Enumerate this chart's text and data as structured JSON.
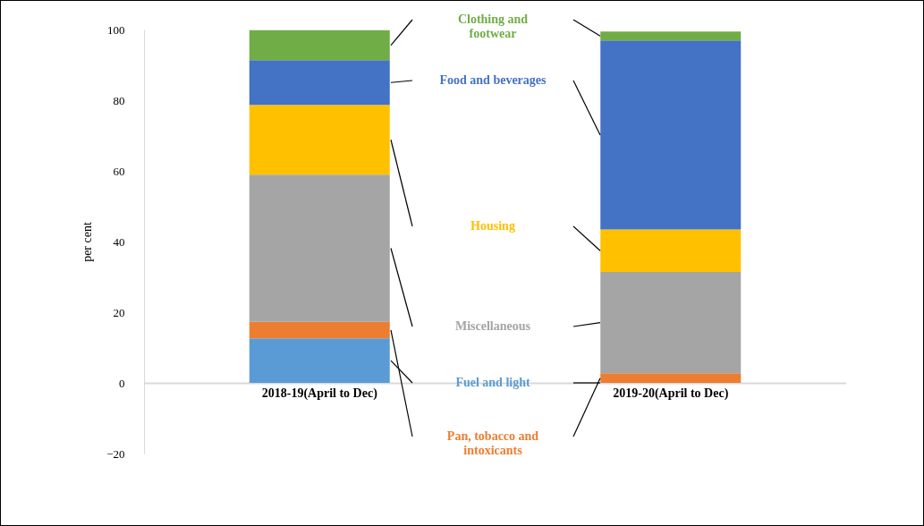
{
  "chart_data": {
    "type": "bar",
    "stacked": true,
    "ylabel": "per cent",
    "legend": false,
    "grid": false,
    "categories": [
      "2018-19(April to Dec)",
      "2019-20(April to Dec)"
    ],
    "ylim": [
      -20,
      100
    ],
    "yticks": [
      -20,
      0,
      20,
      40,
      60,
      80,
      100
    ],
    "series": [
      {
        "name": "Fuel and light",
        "color": "#5b9bd5",
        "values": [
          12.6,
          0
        ]
      },
      {
        "name": "Pan, tobacco and intoxicants",
        "color": "#ed7d31",
        "values": [
          4.7,
          2.7
        ]
      },
      {
        "name": "Miscellaneous",
        "color": "#a5a5a5",
        "values": [
          41.6,
          28.7
        ]
      },
      {
        "name": "Housing",
        "color": "#ffc000",
        "values": [
          19.8,
          12.0
        ]
      },
      {
        "name": "Food and beverages",
        "color": "#4472c4",
        "values": [
          12.6,
          53.5
        ]
      },
      {
        "name": "Clothing and footwear",
        "color": "#70ad47",
        "values": [
          8.5,
          2.5
        ]
      }
    ]
  }
}
